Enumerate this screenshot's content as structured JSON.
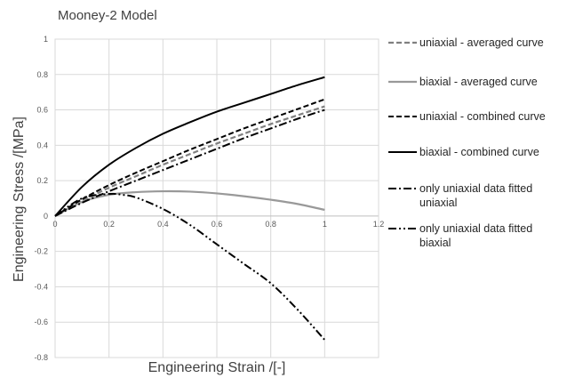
{
  "chart_data": {
    "type": "line",
    "title": "Mooney-2 Model",
    "xlabel": "Engineering Strain /[-]",
    "ylabel": "Engineering Stress /[MPa]",
    "xlim": [
      0,
      1.2
    ],
    "ylim": [
      -0.8,
      1
    ],
    "xticks": [
      0,
      0.2,
      0.4,
      0.6,
      0.8,
      1,
      1.2
    ],
    "xtick_labels": [
      "0",
      "0.2",
      "0.4",
      "0.6",
      "0.8",
      "1",
      "1.2"
    ],
    "yticks": [
      -0.8,
      -0.6,
      -0.4,
      -0.2,
      0,
      0.2,
      0.4,
      0.6,
      0.8,
      1
    ],
    "ytick_labels": [
      "-0.8",
      "-0.6",
      "-0.4",
      "-0.2",
      "0",
      "0.2",
      "0.4",
      "0.6",
      "0.8",
      "1"
    ],
    "grid": "vertical and horizontal major",
    "legend_position": "right",
    "series": [
      {
        "name": "uniaxial - averaged curve",
        "color": "#808080",
        "dash": "dashed",
        "x": [
          0,
          0.1,
          0.2,
          0.3,
          0.4,
          0.5,
          0.6,
          0.7,
          0.8,
          0.9,
          1.0
        ],
        "y": [
          0,
          0.085,
          0.16,
          0.225,
          0.29,
          0.35,
          0.41,
          0.465,
          0.52,
          0.57,
          0.62
        ]
      },
      {
        "name": "biaxial - averaged curve",
        "color": "#999999",
        "dash": "solid",
        "x": [
          0,
          0.1,
          0.2,
          0.3,
          0.4,
          0.5,
          0.6,
          0.7,
          0.8,
          0.9,
          1.0
        ],
        "y": [
          0,
          0.08,
          0.12,
          0.135,
          0.14,
          0.138,
          0.128,
          0.112,
          0.092,
          0.068,
          0.035
        ]
      },
      {
        "name": "uniaxial - combined curve",
        "color": "#000000",
        "dash": "dashed",
        "x": [
          0,
          0.1,
          0.2,
          0.3,
          0.4,
          0.5,
          0.6,
          0.7,
          0.8,
          0.9,
          1.0
        ],
        "y": [
          0,
          0.095,
          0.175,
          0.245,
          0.31,
          0.375,
          0.435,
          0.495,
          0.55,
          0.605,
          0.66
        ]
      },
      {
        "name": "biaxial - combined curve",
        "color": "#000000",
        "dash": "solid",
        "x": [
          0,
          0.1,
          0.2,
          0.3,
          0.4,
          0.5,
          0.6,
          0.7,
          0.8,
          0.9,
          1.0
        ],
        "y": [
          0,
          0.165,
          0.29,
          0.385,
          0.465,
          0.53,
          0.59,
          0.64,
          0.69,
          0.74,
          0.785
        ]
      },
      {
        "name": "only uniaxial data fitted uniaxial",
        "color": "#000000",
        "dash": "dash-dot",
        "x": [
          0,
          0.1,
          0.2,
          0.3,
          0.4,
          0.5,
          0.6,
          0.7,
          0.8,
          0.9,
          1.0
        ],
        "y": [
          0,
          0.075,
          0.14,
          0.2,
          0.26,
          0.32,
          0.38,
          0.44,
          0.495,
          0.55,
          0.6
        ]
      },
      {
        "name": "only uniaxial data fitted biaxial",
        "color": "#000000",
        "dash": "dash-dot-dot",
        "x": [
          0,
          0.1,
          0.2,
          0.25,
          0.3,
          0.4,
          0.5,
          0.6,
          0.7,
          0.8,
          0.9,
          1.0
        ],
        "y": [
          0,
          0.1,
          0.125,
          0.12,
          0.105,
          0.04,
          -0.05,
          -0.16,
          -0.27,
          -0.38,
          -0.53,
          -0.7
        ]
      }
    ]
  },
  "legend": {
    "entries": [
      {
        "lines": [
          "uniaxial - averaged curve"
        ]
      },
      {
        "lines": [
          "biaxial - averaged curve"
        ]
      },
      {
        "lines": [
          "uniaxial - combined curve"
        ]
      },
      {
        "lines": [
          "biaxial - combined curve"
        ]
      },
      {
        "lines": [
          "only uniaxial data fitted",
          "uniaxial"
        ]
      },
      {
        "lines": [
          "only uniaxial data fitted",
          "biaxial"
        ]
      }
    ]
  }
}
